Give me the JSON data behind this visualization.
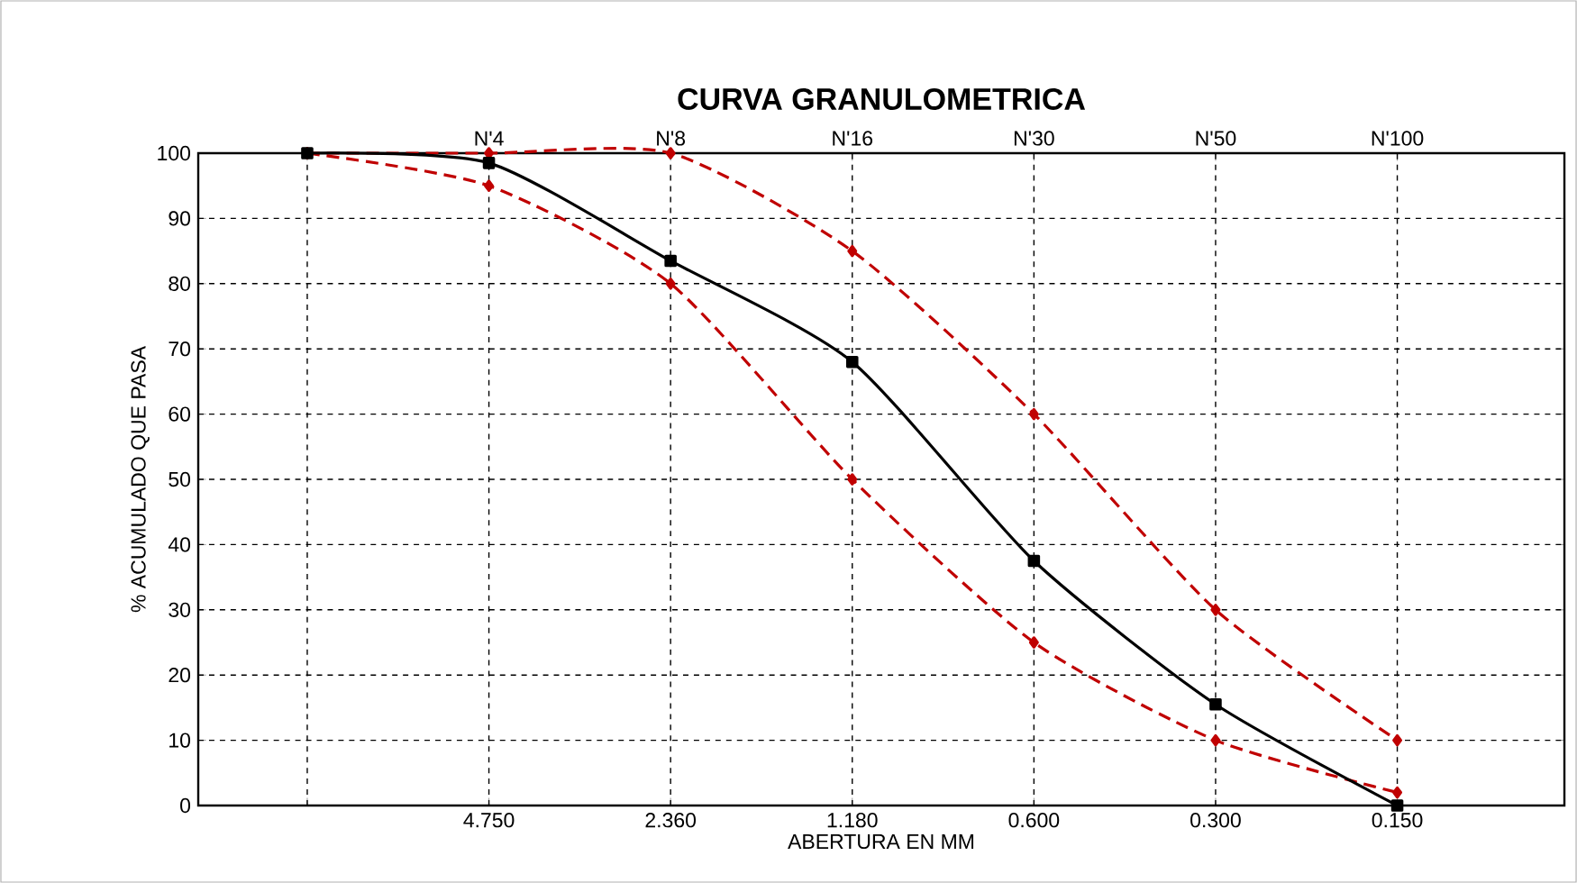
{
  "chart_data": {
    "type": "line",
    "title": "CURVA GRANULOMETRICA",
    "xlabel": "ABERTURA EN MM",
    "ylabel": "% ACUMULADO QUE PASA",
    "categories": [
      null,
      "4.750",
      "2.360",
      "1.180",
      "0.600",
      "0.300",
      "0.150"
    ],
    "ylim": [
      0,
      100
    ],
    "yticks": [
      0,
      10,
      20,
      30,
      40,
      50,
      60,
      70,
      80,
      90,
      100
    ],
    "grid": true,
    "series": [
      {
        "color": "#c00000",
        "marker": "diamond",
        "line_style": "dashed",
        "values": [
          100,
          100,
          100,
          85,
          60,
          30,
          10
        ]
      },
      {
        "color": "#c00000",
        "marker": "diamond",
        "line_style": "dashed",
        "values": [
          100,
          95,
          80,
          50,
          25,
          10,
          2
        ]
      },
      {
        "color": "#000000",
        "marker": "square",
        "line_style": "solid",
        "values": [
          100,
          98.5,
          83.5,
          68,
          37.5,
          15.5,
          0
        ]
      }
    ],
    "annotations": [
      "N'4",
      "N'8",
      "N'16",
      "N'30",
      "N'50",
      "N'100"
    ]
  }
}
